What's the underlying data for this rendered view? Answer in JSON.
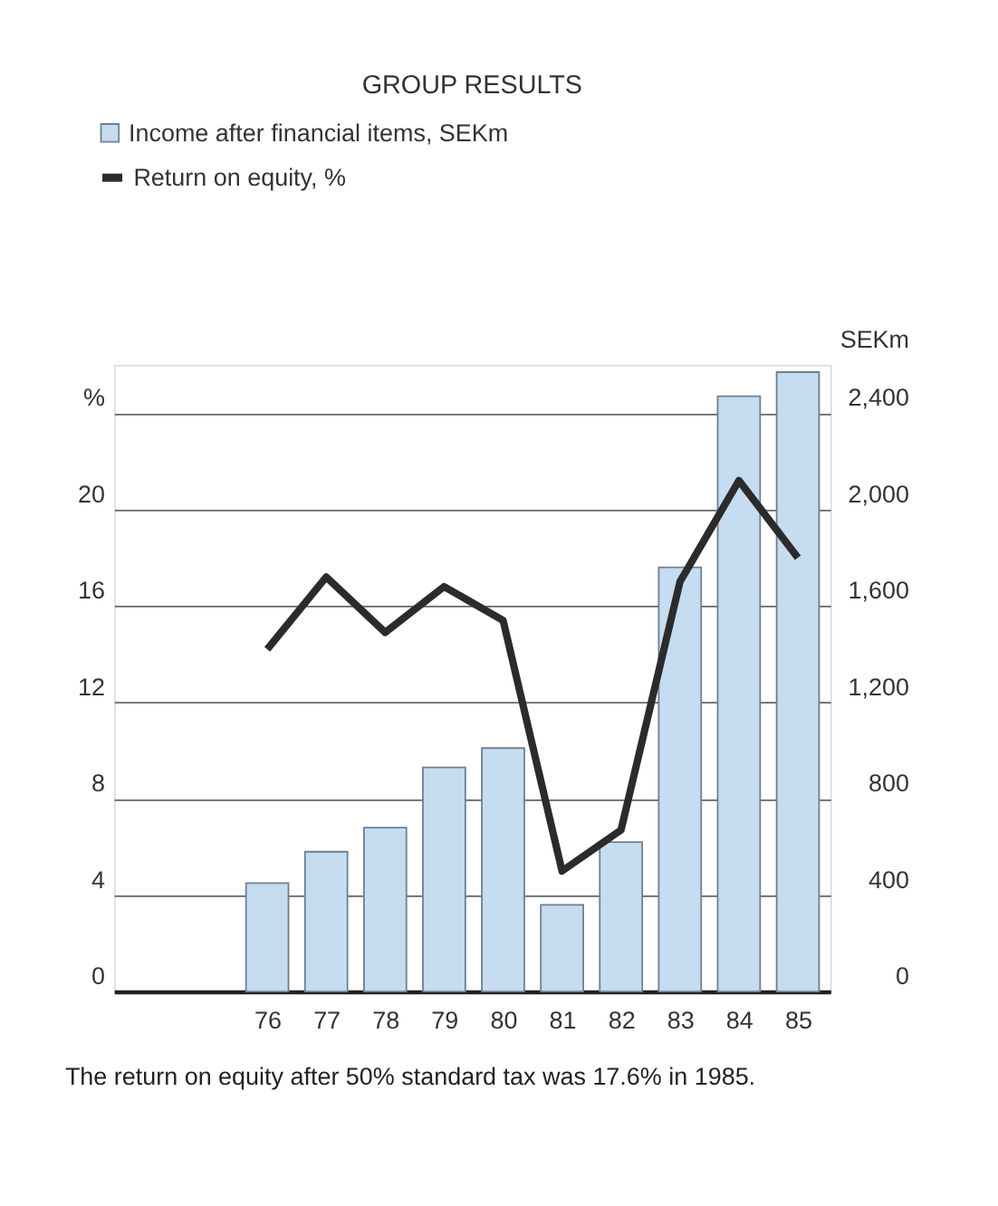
{
  "chart_data": {
    "type": "bar",
    "title": "GROUP RESULTS",
    "categories": [
      "76",
      "77",
      "78",
      "79",
      "80",
      "81",
      "82",
      "83",
      "84",
      "85"
    ],
    "series": [
      {
        "name": "Income after financial items, SEKm",
        "axis": "y2",
        "color": "#c6dcf0",
        "values": [
          450,
          580,
          680,
          930,
          1010,
          360,
          620,
          1760,
          2470,
          2570
        ]
      },
      {
        "name": "Return on equity, %",
        "type": "line",
        "axis": "y",
        "color": "#2b2b2b",
        "values": [
          14.2,
          17.2,
          14.9,
          16.8,
          15.4,
          5.0,
          6.7,
          17.0,
          21.2,
          18.0
        ]
      }
    ],
    "ylim": [
      0,
      26
    ],
    "yticks": [
      0,
      4,
      8,
      12,
      16,
      20,
      {
        "value": 24,
        "label": "%"
      }
    ],
    "y2label": "SEKm",
    "y2lim": [
      0,
      2600
    ],
    "y2ticks": [
      0,
      400,
      800,
      {
        "value": 1200,
        "label": "1,200"
      },
      {
        "value": 1600,
        "label": "1,600"
      },
      {
        "value": 2000,
        "label": "2,000"
      },
      {
        "value": 2400,
        "label": "2,400"
      }
    ],
    "grid": "y",
    "legend": "top left",
    "annotations": [
      "The return on equity after 50% standard tax was 17.6% in 1985."
    ]
  }
}
